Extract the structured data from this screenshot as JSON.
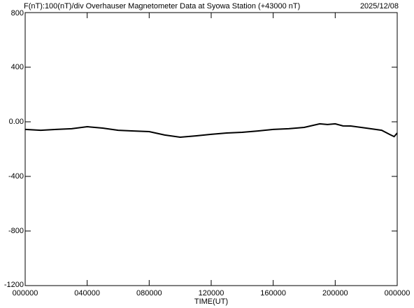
{
  "chart_data": {
    "type": "line",
    "title": "F(nT):100(nT)/div  Overhauser Magnetometer Data at Syowa Station (+43000 nT)",
    "date": "2025/12/08",
    "xlabel": "TIME(UT)",
    "x": [
      0,
      1,
      2,
      3,
      4,
      5,
      6,
      7,
      8,
      9,
      10,
      11,
      12,
      13,
      14,
      15,
      16,
      17,
      18,
      19,
      19.5,
      20,
      20.5,
      21,
      22,
      23,
      23.5,
      23.8,
      24
    ],
    "series": [
      {
        "name": "F",
        "color": "#000000",
        "values": [
          -56,
          -62,
          -56,
          -51,
          -36,
          -46,
          -62,
          -67,
          -72,
          -97,
          -113,
          -103,
          -92,
          -82,
          -77,
          -67,
          -56,
          -51,
          -41,
          -15,
          -20,
          -15,
          -30,
          -31,
          -46,
          -62,
          -92,
          -108,
          -82
        ]
      }
    ],
    "xlim": [
      0,
      24
    ],
    "xticks": [
      {
        "value": 0,
        "label": "000000"
      },
      {
        "value": 4,
        "label": "040000"
      },
      {
        "value": 8,
        "label": "080000"
      },
      {
        "value": 12,
        "label": "120000"
      },
      {
        "value": 16,
        "label": "160000"
      },
      {
        "value": 20,
        "label": "200000"
      },
      {
        "value": 24,
        "label": "000000"
      }
    ],
    "ylim": [
      -1200,
      800
    ],
    "yticks": [
      -1200,
      -800,
      -400,
      {
        "value": 0,
        "label": "0.00"
      },
      400,
      800
    ]
  }
}
